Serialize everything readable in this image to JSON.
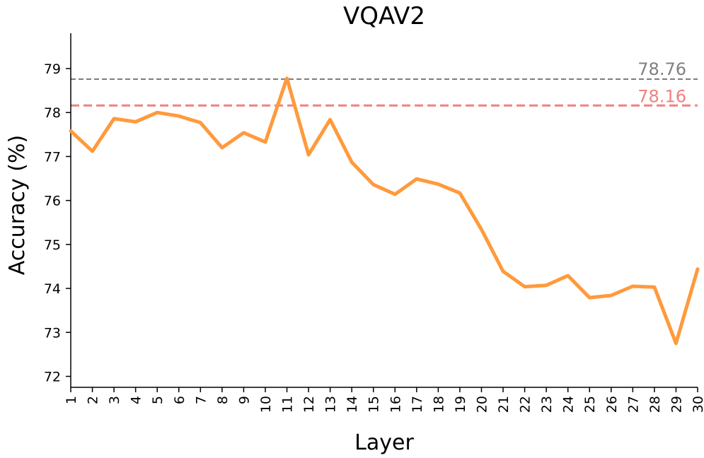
{
  "chart_data": {
    "type": "line",
    "title": "VQAV2",
    "xlabel": "Layer",
    "ylabel": "Accuracy (%)",
    "categories": [
      "1",
      "2",
      "3",
      "4",
      "5",
      "6",
      "7",
      "8",
      "9",
      "10",
      "11",
      "12",
      "13",
      "14",
      "15",
      "16",
      "17",
      "18",
      "19",
      "20",
      "21",
      "22",
      "23",
      "24",
      "25",
      "26",
      "27",
      "28",
      "29",
      "30"
    ],
    "series": [
      {
        "name": "Accuracy",
        "color": "#ff9a3c",
        "values": [
          77.58,
          77.12,
          77.86,
          77.79,
          78.0,
          77.92,
          77.77,
          77.2,
          77.54,
          77.33,
          78.78,
          77.04,
          77.84,
          76.87,
          76.36,
          76.14,
          76.49,
          76.37,
          76.17,
          75.34,
          74.39,
          74.04,
          74.07,
          74.29,
          73.79,
          73.84,
          74.05,
          74.03,
          72.75,
          74.44
        ]
      }
    ],
    "ylim": [
      71.8,
      79.8
    ],
    "yticks": [
      72,
      73,
      74,
      75,
      76,
      77,
      78,
      79
    ],
    "reference_lines": [
      {
        "value": 78.76,
        "label": "78.76",
        "color": "#808080",
        "style": "dashed"
      },
      {
        "value": 78.16,
        "label": "78.16",
        "color": "#f08080",
        "style": "dashed"
      }
    ],
    "grid": false,
    "legend": "none"
  }
}
